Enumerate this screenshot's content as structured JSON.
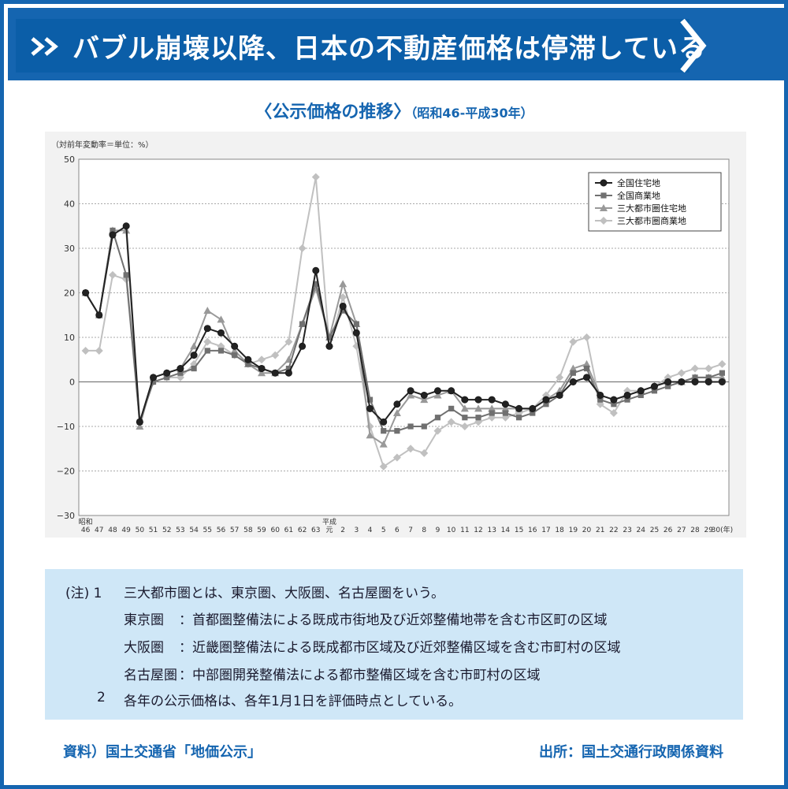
{
  "header": {
    "title": "バブル崩壊以降、日本の不動産価格は停滞している",
    "chevron_icon": "double-chevron-right",
    "arrow_icon": "chevron-right"
  },
  "subtitle": {
    "main": "〈公示価格の推移〉",
    "range": "（昭和46-平成30年）"
  },
  "chart_data": {
    "type": "line",
    "unit_note": "（対前年変動率＝単位：%）",
    "x": [
      "46",
      "47",
      "48",
      "49",
      "50",
      "51",
      "52",
      "53",
      "54",
      "55",
      "56",
      "57",
      "58",
      "59",
      "60",
      "61",
      "62",
      "63",
      "元",
      "2",
      "3",
      "4",
      "5",
      "6",
      "7",
      "8",
      "9",
      "10",
      "11",
      "12",
      "13",
      "14",
      "15",
      "16",
      "17",
      "18",
      "19",
      "20",
      "21",
      "22",
      "23",
      "24",
      "25",
      "26",
      "27",
      "28",
      "29",
      "30(年)"
    ],
    "era_labels": [
      {
        "label": "昭和",
        "at": "46"
      },
      {
        "label": "平成",
        "at": "元"
      }
    ],
    "ylim": [
      -30,
      50
    ],
    "yticks": [
      -30,
      -20,
      -10,
      0,
      10,
      20,
      30,
      40,
      50
    ],
    "yticklabels": [
      "−30",
      "−20",
      "−10",
      "0",
      "10",
      "20",
      "30",
      "40",
      "50"
    ],
    "grid": true,
    "legend_position": "top-right",
    "series": [
      {
        "name": "全国住宅地",
        "color": "#222222",
        "marker": "circle",
        "values": [
          20,
          15,
          33,
          35,
          -9,
          1,
          2,
          3,
          6,
          12,
          11,
          8,
          5,
          3,
          2,
          2,
          8,
          25,
          8,
          17,
          11,
          -6,
          -9,
          -5,
          -2,
          -3,
          -2,
          -2,
          -4,
          -4,
          -4,
          -5,
          -6,
          -6,
          -4,
          -3,
          0,
          1,
          -3,
          -4,
          -3,
          -2,
          -1,
          0,
          0,
          0,
          0,
          0
        ]
      },
      {
        "name": "全国商業地",
        "color": "#707070",
        "marker": "square",
        "values": [
          20,
          15,
          34,
          24,
          -9,
          0,
          1,
          2,
          3,
          7,
          7,
          6,
          4,
          3,
          2,
          3,
          13,
          22,
          10,
          16,
          13,
          -4,
          -11,
          -11,
          -10,
          -10,
          -8,
          -6,
          -8,
          -8,
          -7,
          -7,
          -8,
          -7,
          -5,
          -3,
          2,
          3,
          -4,
          -5,
          -4,
          -3,
          -2,
          -1,
          0,
          1,
          1,
          2
        ]
      },
      {
        "name": "三大都市圏住宅地",
        "color": "#999999",
        "marker": "triangle",
        "values": [
          20,
          15,
          34,
          34,
          -10,
          1,
          2,
          3,
          8,
          16,
          14,
          7,
          4,
          2,
          2,
          5,
          13,
          21,
          10,
          22,
          13,
          -12,
          -14,
          -7,
          -3,
          -4,
          -3,
          -2,
          -6,
          -6,
          -6,
          -6,
          -6,
          -6,
          -4,
          -2,
          3,
          4,
          -3,
          -4,
          -3,
          -2,
          -1,
          0,
          0,
          1,
          1,
          1
        ]
      },
      {
        "name": "三大都市圏商業地",
        "color": "#c0c0c0",
        "marker": "diamond",
        "values": [
          7,
          7,
          24,
          23,
          -9,
          0,
          1,
          1,
          4,
          9,
          8,
          6,
          4,
          5,
          6,
          9,
          30,
          46,
          8,
          19,
          8,
          -10,
          -19,
          -17,
          -15,
          -16,
          -11,
          -9,
          -10,
          -9,
          -8,
          -8,
          -7,
          -6,
          -3,
          1,
          9,
          10,
          -5,
          -7,
          -2,
          -2,
          -1,
          1,
          2,
          3,
          3,
          4
        ]
      }
    ]
  },
  "notes": {
    "label": "(注) 1",
    "line1": "三大都市圏とは、東京圏、大阪圏、名古屋圏をいう。",
    "tokyo_name": "東京圏",
    "tokyo_text": "：首都圏整備法による既成市街地及び近郊整備地帯を含む市区町の区域",
    "osaka_name": "大阪圏",
    "osaka_text": "：近畿圏整備法による既成都市区域及び近郊整備区域を含む市町村の区域",
    "nagoya_name": "名古屋圏",
    "nagoya_text": "：中部圏開発整備法による都市整備区域を含む市町村の区域",
    "num2": "2",
    "line2": "各年の公示価格は、各年1月1日を評価時点としている。"
  },
  "footer": {
    "source": "資料）国土交通省「地価公示」",
    "origin": "出所：国土交通行政関係資料"
  }
}
